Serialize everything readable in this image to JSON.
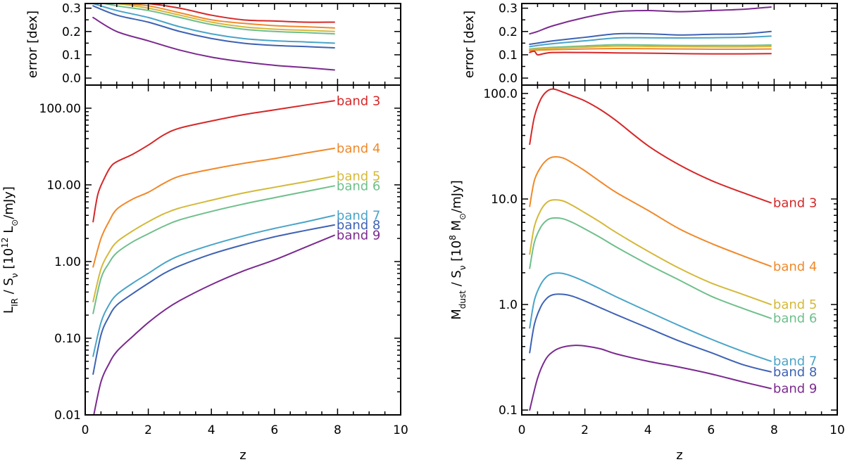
{
  "chart_data": [
    {
      "type": "line",
      "panel": "left-top",
      "xlabel": "",
      "ylabel": "error [dex]",
      "xlim": [
        0,
        10
      ],
      "ylim": [
        -0.03,
        0.32
      ],
      "xscale": "linear",
      "yscale": "linear",
      "xticks": [],
      "yticks": [
        0.0,
        0.1,
        0.2,
        0.3
      ],
      "ytick_labels": [
        "0.0",
        "0.1",
        "0.2",
        "0.3"
      ],
      "series": [
        {
          "name": "band 3",
          "color": "#d62728",
          "x": [
            0.25,
            1,
            2,
            3,
            4,
            5,
            6,
            7,
            7.9
          ],
          "y": [
            0.33,
            0.33,
            0.32,
            0.3,
            0.27,
            0.25,
            0.245,
            0.24,
            0.24
          ]
        },
        {
          "name": "band 4",
          "color": "#f0892a",
          "x": [
            0.25,
            1,
            2,
            3,
            4,
            5,
            6,
            7,
            7.9
          ],
          "y": [
            0.33,
            0.32,
            0.31,
            0.28,
            0.25,
            0.235,
            0.225,
            0.22,
            0.215
          ]
        },
        {
          "name": "band 5",
          "color": "#d4b93a",
          "x": [
            0.25,
            1,
            2,
            3,
            4,
            5,
            6,
            7,
            7.9
          ],
          "y": [
            0.33,
            0.32,
            0.3,
            0.27,
            0.24,
            0.22,
            0.21,
            0.205,
            0.2
          ]
        },
        {
          "name": "band 6",
          "color": "#6fbf8b",
          "x": [
            0.25,
            1,
            2,
            3,
            4,
            5,
            6,
            7,
            7.9
          ],
          "y": [
            0.33,
            0.31,
            0.29,
            0.26,
            0.23,
            0.21,
            0.2,
            0.195,
            0.19
          ]
        },
        {
          "name": "band 7",
          "color": "#4aa4c8",
          "x": [
            0.25,
            1,
            2,
            3,
            4,
            5,
            6,
            7,
            7.9
          ],
          "y": [
            0.32,
            0.29,
            0.26,
            0.22,
            0.19,
            0.17,
            0.16,
            0.155,
            0.15
          ]
        },
        {
          "name": "band 8",
          "color": "#3e62b4",
          "x": [
            0.25,
            1,
            2,
            3,
            4,
            5,
            6,
            7,
            7.9
          ],
          "y": [
            0.31,
            0.27,
            0.24,
            0.2,
            0.17,
            0.15,
            0.14,
            0.135,
            0.13
          ]
        },
        {
          "name": "band 9",
          "color": "#7b2a8f",
          "x": [
            0.25,
            1,
            2,
            3,
            4,
            5,
            6,
            7,
            7.9
          ],
          "y": [
            0.26,
            0.2,
            0.16,
            0.12,
            0.09,
            0.07,
            0.055,
            0.045,
            0.035
          ]
        }
      ]
    },
    {
      "type": "line",
      "panel": "left-bottom",
      "xlabel": "z",
      "ylabel": "L_IR / S_ν [10^12 L_⊙/mJy]",
      "ylabel_parts": {
        "main": "L",
        "sub1": "IR",
        "mid": " / S",
        "sub2": "ν",
        "pre": " [10",
        "sup": "12",
        "post1": " L",
        "sub3": "⊙",
        "post2": "/mJy]"
      },
      "xlim": [
        0,
        10
      ],
      "ylim": [
        0.01,
        200
      ],
      "xscale": "linear",
      "yscale": "log",
      "xticks": [
        0,
        2,
        4,
        6,
        8,
        10
      ],
      "xtick_labels": [
        "0",
        "2",
        "4",
        "6",
        "8",
        "10"
      ],
      "yticks": [
        0.01,
        0.1,
        1,
        10,
        100
      ],
      "ytick_labels": [
        "0.01",
        "0.10",
        "1.00",
        "10.00",
        "100.00"
      ],
      "series": [
        {
          "name": "band 3",
          "color": "#d62728",
          "label": "band 3",
          "x": [
            0.25,
            0.4,
            0.6,
            0.8,
            1.0,
            1.5,
            2.0,
            2.5,
            3.0,
            4.0,
            5.0,
            6.0,
            7.0,
            7.9
          ],
          "y": [
            3.3,
            7.5,
            12,
            17,
            20,
            25,
            33,
            45,
            55,
            68,
            82,
            95,
            110,
            125
          ]
        },
        {
          "name": "band 4",
          "color": "#f0892a",
          "label": "band 4",
          "x": [
            0.25,
            0.5,
            0.75,
            1.0,
            1.5,
            2.0,
            2.5,
            3.0,
            4.0,
            5.0,
            6.0,
            7.0,
            7.9
          ],
          "y": [
            0.85,
            2.0,
            3.3,
            4.8,
            6.5,
            8.0,
            10.5,
            13,
            16,
            19,
            22,
            26,
            30
          ]
        },
        {
          "name": "band 5",
          "color": "#d4b93a",
          "label": "band 5",
          "x": [
            0.25,
            0.5,
            0.75,
            1.0,
            1.5,
            2.0,
            2.5,
            3.0,
            4.0,
            5.0,
            6.0,
            7.0,
            7.9
          ],
          "y": [
            0.3,
            0.8,
            1.3,
            1.8,
            2.5,
            3.3,
            4.2,
            5.0,
            6.3,
            7.8,
            9.3,
            11,
            13
          ]
        },
        {
          "name": "band 6",
          "color": "#6fbf8b",
          "label": "band 6",
          "x": [
            0.25,
            0.5,
            0.75,
            1.0,
            1.5,
            2.0,
            2.5,
            3.0,
            4.0,
            5.0,
            6.0,
            7.0,
            7.9
          ],
          "y": [
            0.21,
            0.6,
            0.95,
            1.3,
            1.8,
            2.3,
            2.9,
            3.5,
            4.5,
            5.6,
            6.8,
            8.2,
            9.7
          ]
        },
        {
          "name": "band 7",
          "color": "#4aa4c8",
          "label": "band 7",
          "x": [
            0.25,
            0.5,
            0.75,
            1.0,
            1.5,
            2.0,
            2.5,
            3.0,
            4.0,
            5.0,
            6.0,
            7.0,
            7.9
          ],
          "y": [
            0.058,
            0.16,
            0.27,
            0.37,
            0.52,
            0.7,
            0.95,
            1.2,
            1.65,
            2.15,
            2.7,
            3.3,
            4.0
          ]
        },
        {
          "name": "band 8",
          "color": "#3e62b4",
          "label": "band 8",
          "x": [
            0.25,
            0.5,
            0.75,
            1.0,
            1.5,
            2.0,
            2.5,
            3.0,
            4.0,
            5.0,
            6.0,
            7.0,
            7.9
          ],
          "y": [
            0.034,
            0.11,
            0.19,
            0.27,
            0.38,
            0.52,
            0.7,
            0.88,
            1.25,
            1.65,
            2.1,
            2.55,
            3.0
          ]
        },
        {
          "name": "band 9",
          "color": "#7b2a8f",
          "label": "band 9",
          "x": [
            0.25,
            0.5,
            0.75,
            1.0,
            1.5,
            2.0,
            2.5,
            3.0,
            4.0,
            5.0,
            6.0,
            7.0,
            7.9
          ],
          "y": [
            0.009,
            0.027,
            0.046,
            0.067,
            0.105,
            0.16,
            0.23,
            0.31,
            0.5,
            0.75,
            1.05,
            1.55,
            2.2
          ]
        }
      ]
    },
    {
      "type": "line",
      "panel": "right-top",
      "xlabel": "",
      "ylabel": "error [dex]",
      "xlim": [
        0,
        10
      ],
      "ylim": [
        -0.03,
        0.32
      ],
      "xscale": "linear",
      "yscale": "linear",
      "xticks": [],
      "yticks": [
        0.0,
        0.1,
        0.2,
        0.3
      ],
      "ytick_labels": [
        "0.0",
        "0.1",
        "0.2",
        "0.3"
      ],
      "series": [
        {
          "name": "band 9",
          "color": "#7b2a8f",
          "x": [
            0.25,
            0.5,
            1,
            2,
            3,
            4,
            5,
            6,
            7,
            7.9
          ],
          "y": [
            0.19,
            0.2,
            0.225,
            0.26,
            0.285,
            0.29,
            0.285,
            0.29,
            0.295,
            0.305
          ]
        },
        {
          "name": "band 8",
          "color": "#3e62b4",
          "x": [
            0.25,
            0.5,
            1,
            2,
            3,
            4,
            5,
            6,
            7,
            7.9
          ],
          "y": [
            0.145,
            0.15,
            0.16,
            0.175,
            0.19,
            0.19,
            0.185,
            0.188,
            0.19,
            0.2
          ]
        },
        {
          "name": "band 7",
          "color": "#4aa4c8",
          "x": [
            0.25,
            0.5,
            1,
            2,
            3,
            4,
            5,
            6,
            7,
            7.9
          ],
          "y": [
            0.135,
            0.14,
            0.148,
            0.16,
            0.172,
            0.173,
            0.172,
            0.173,
            0.175,
            0.18
          ]
        },
        {
          "name": "band 6",
          "color": "#6fbf8b",
          "x": [
            0.25,
            0.5,
            1,
            2,
            3,
            4,
            5,
            6,
            7,
            7.9
          ],
          "y": [
            0.125,
            0.128,
            0.132,
            0.138,
            0.143,
            0.142,
            0.14,
            0.14,
            0.14,
            0.142
          ]
        },
        {
          "name": "band 5",
          "color": "#d4b93a",
          "x": [
            0.25,
            0.5,
            1,
            2,
            3,
            4,
            5,
            6,
            7,
            7.9
          ],
          "y": [
            0.122,
            0.125,
            0.128,
            0.133,
            0.137,
            0.136,
            0.135,
            0.134,
            0.134,
            0.136
          ]
        },
        {
          "name": "band 4",
          "color": "#f0892a",
          "x": [
            0.25,
            0.5,
            1,
            2,
            3,
            4,
            5,
            6,
            7,
            7.9
          ],
          "y": [
            0.118,
            0.12,
            0.122,
            0.125,
            0.127,
            0.126,
            0.125,
            0.124,
            0.124,
            0.125
          ]
        },
        {
          "name": "band 3",
          "color": "#d62728",
          "x": [
            0.25,
            0.4,
            0.5,
            0.7,
            1,
            2,
            3,
            4,
            5,
            6,
            7,
            7.9
          ],
          "y": [
            0.11,
            0.115,
            0.1,
            0.105,
            0.11,
            0.11,
            0.108,
            0.107,
            0.105,
            0.104,
            0.104,
            0.105
          ]
        }
      ]
    },
    {
      "type": "line",
      "panel": "right-bottom",
      "xlabel": "z",
      "ylabel": "M_dust / S_ν [10^8 M_⊙/mJy]",
      "ylabel_parts": {
        "main": "M",
        "sub1": "dust",
        "mid": " / S",
        "sub2": "ν",
        "pre": " [10",
        "sup": "8",
        "post1": " M",
        "sub3": "⊙",
        "post2": "/mJy]"
      },
      "xlim": [
        0,
        10
      ],
      "ylim": [
        0.09,
        120
      ],
      "xscale": "linear",
      "yscale": "log",
      "xticks": [
        0,
        2,
        4,
        6,
        8,
        10
      ],
      "xtick_labels": [
        "0",
        "2",
        "4",
        "6",
        "8",
        "10"
      ],
      "yticks": [
        0.1,
        1,
        10,
        100
      ],
      "ytick_labels": [
        "0.1",
        "1.0",
        "10.0",
        "100.0"
      ],
      "series": [
        {
          "name": "band 3",
          "color": "#d62728",
          "label": "band 3",
          "x": [
            0.25,
            0.4,
            0.6,
            0.8,
            1.0,
            1.3,
            1.6,
            2.0,
            2.5,
            3.0,
            4.0,
            5.0,
            6.0,
            7.0,
            7.9
          ],
          "y": [
            33,
            60,
            88,
            105,
            110,
            103,
            95,
            85,
            70,
            55,
            32,
            21,
            15,
            11.5,
            9.2
          ]
        },
        {
          "name": "band 4",
          "color": "#f0892a",
          "label": "band 4",
          "x": [
            0.25,
            0.4,
            0.6,
            0.8,
            1.0,
            1.3,
            1.6,
            2.0,
            2.5,
            3.0,
            4.0,
            5.0,
            6.0,
            7.0,
            7.9
          ],
          "y": [
            8.5,
            15,
            20,
            23.5,
            25,
            24.5,
            22,
            18.5,
            14.5,
            11.5,
            7.8,
            5.2,
            3.8,
            2.9,
            2.3
          ]
        },
        {
          "name": "band 5",
          "color": "#d4b93a",
          "label": "band 5",
          "x": [
            0.25,
            0.4,
            0.6,
            0.8,
            1.0,
            1.3,
            1.6,
            2.0,
            2.5,
            3.0,
            4.0,
            5.0,
            6.0,
            7.0,
            7.9
          ],
          "y": [
            3.0,
            5.5,
            7.8,
            9.3,
            9.8,
            9.6,
            8.7,
            7.4,
            6.0,
            4.8,
            3.2,
            2.2,
            1.6,
            1.25,
            1.0
          ]
        },
        {
          "name": "band 6",
          "color": "#6fbf8b",
          "label": "band 6",
          "x": [
            0.25,
            0.4,
            0.6,
            0.8,
            1.0,
            1.3,
            1.6,
            2.0,
            2.5,
            3.0,
            4.0,
            5.0,
            6.0,
            7.0,
            7.9
          ],
          "y": [
            2.2,
            3.9,
            5.4,
            6.3,
            6.6,
            6.5,
            6.0,
            5.2,
            4.3,
            3.5,
            2.4,
            1.7,
            1.2,
            0.92,
            0.74
          ]
        },
        {
          "name": "band 7",
          "color": "#4aa4c8",
          "label": "band 7",
          "x": [
            0.25,
            0.4,
            0.6,
            0.8,
            1.0,
            1.3,
            1.6,
            2.0,
            2.5,
            3.0,
            4.0,
            5.0,
            6.0,
            7.0,
            7.9
          ],
          "y": [
            0.6,
            1.1,
            1.55,
            1.85,
            1.97,
            1.97,
            1.85,
            1.65,
            1.4,
            1.18,
            0.86,
            0.63,
            0.47,
            0.36,
            0.29
          ]
        },
        {
          "name": "band 8",
          "color": "#3e62b4",
          "label": "band 8",
          "x": [
            0.25,
            0.4,
            0.6,
            0.8,
            1.0,
            1.3,
            1.6,
            2.0,
            2.5,
            3.0,
            4.0,
            5.0,
            6.0,
            7.0,
            7.9
          ],
          "y": [
            0.35,
            0.65,
            0.95,
            1.15,
            1.24,
            1.25,
            1.2,
            1.08,
            0.93,
            0.8,
            0.6,
            0.45,
            0.35,
            0.27,
            0.23
          ]
        },
        {
          "name": "band 9",
          "color": "#7b2a8f",
          "label": "band 9",
          "x": [
            0.25,
            0.5,
            0.75,
            1.0,
            1.3,
            1.7,
            2.0,
            2.5,
            3.0,
            4.0,
            5.0,
            6.0,
            7.0,
            7.9
          ],
          "y": [
            0.1,
            0.2,
            0.3,
            0.36,
            0.395,
            0.41,
            0.405,
            0.38,
            0.34,
            0.29,
            0.255,
            0.22,
            0.185,
            0.16
          ]
        }
      ]
    }
  ]
}
